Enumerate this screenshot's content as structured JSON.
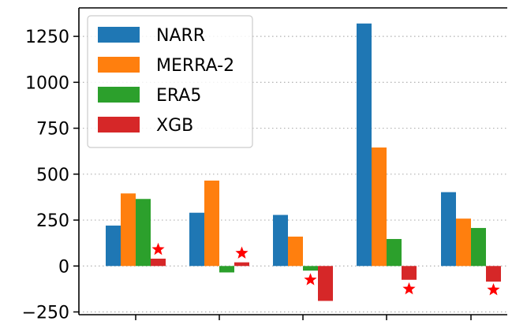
{
  "chart_data": {
    "type": "bar",
    "categories": [
      "",
      "",
      "",
      "",
      ""
    ],
    "series": [
      {
        "name": "NARR",
        "color": "#1f77b4",
        "values": [
          220,
          290,
          278,
          1320,
          402
        ]
      },
      {
        "name": "MERRA-2",
        "color": "#ff7f0e",
        "values": [
          395,
          465,
          160,
          645,
          258
        ]
      },
      {
        "name": "ERA5",
        "color": "#2ca02c",
        "values": [
          365,
          -35,
          -25,
          147,
          207
        ]
      },
      {
        "name": "XGB",
        "color": "#d62728",
        "values": [
          40,
          20,
          -190,
          -75,
          -85
        ]
      }
    ],
    "best_markers": [
      {
        "category_index": 0,
        "series": "XGB",
        "y": 90
      },
      {
        "category_index": 1,
        "series": "XGB",
        "y": 70
      },
      {
        "category_index": 2,
        "series": "ERA5",
        "y": -75
      },
      {
        "category_index": 3,
        "series": "XGB",
        "y": -125
      },
      {
        "category_index": 4,
        "series": "XGB",
        "y": -130
      }
    ],
    "marker_color": "#ff0000",
    "yticks": [
      -250,
      0,
      250,
      500,
      750,
      1000,
      1250
    ],
    "ylim": [
      -265,
      1405
    ],
    "grid": "horizontal-dotted",
    "legend_position": "top-left",
    "title": "",
    "xlabel": "",
    "ylabel": ""
  }
}
